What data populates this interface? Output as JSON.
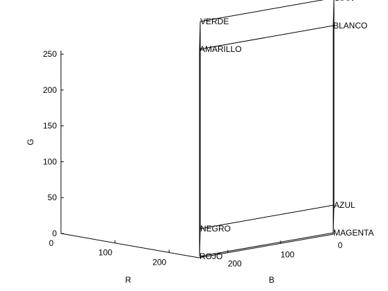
{
  "chart_data": {
    "type": "scatter3d",
    "title": "",
    "xlabel": "R",
    "ylabel": "G",
    "zlabel": "B",
    "xlim": [
      0,
      255
    ],
    "ylim": [
      0,
      255
    ],
    "zlim": [
      0,
      255
    ],
    "grid": false,
    "view": "3d-perspective",
    "g_ticks": [
      "0",
      "50",
      "100",
      "150",
      "200",
      "250"
    ],
    "r_ticks": [
      "0",
      "100",
      "200"
    ],
    "b_ticks": [
      "0",
      "100",
      "200"
    ],
    "points": [
      {
        "label": "NEGRO",
        "r": 0,
        "g": 0,
        "b": 0
      },
      {
        "label": "ROJO",
        "r": 255,
        "g": 0,
        "b": 0
      },
      {
        "label": "VERDE",
        "r": 0,
        "g": 255,
        "b": 0
      },
      {
        "label": "AZUL",
        "r": 0,
        "g": 0,
        "b": 255
      },
      {
        "label": "AMARILLO",
        "r": 255,
        "g": 255,
        "b": 0
      },
      {
        "label": "CIAN",
        "r": 0,
        "g": 255,
        "b": 255
      },
      {
        "label": "MAGENTA",
        "r": 255,
        "g": 0,
        "b": 255
      },
      {
        "label": "BLANCO",
        "r": 255,
        "g": 255,
        "b": 255
      }
    ],
    "edges": [
      [
        "NEGRO",
        "ROJO"
      ],
      [
        "NEGRO",
        "AZUL"
      ],
      [
        "NEGRO",
        "VERDE"
      ],
      [
        "ROJO",
        "MAGENTA"
      ],
      [
        "ROJO",
        "AMARILLO"
      ],
      [
        "AZUL",
        "MAGENTA"
      ],
      [
        "AZUL",
        "CIAN"
      ],
      [
        "VERDE",
        "AMARILLO"
      ],
      [
        "VERDE",
        "CIAN"
      ],
      [
        "MAGENTA",
        "BLANCO"
      ],
      [
        "AMARILLO",
        "BLANCO"
      ],
      [
        "CIAN",
        "BLANCO"
      ]
    ]
  }
}
